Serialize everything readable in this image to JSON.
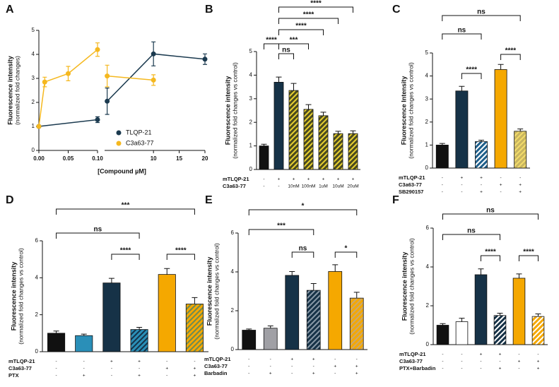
{
  "chart_data": [
    {
      "type": "line",
      "title": "A",
      "ylabel": "Fluorescence intensity",
      "ylabel_sub": "(normalized fold changes)",
      "xlabel": "[Compound µM]",
      "ylim": [
        0,
        5
      ],
      "yticks": [
        0,
        1,
        2,
        3,
        4,
        5
      ],
      "x_segments": [
        {
          "xlim": [
            0,
            0.1
          ],
          "xticks": [
            {
              "value": 0,
              "label": "0.00"
            },
            {
              "value": 0.05,
              "label": "0.05"
            },
            {
              "value": 0.1,
              "label": "0.10"
            }
          ]
        },
        {
          "xlim": [
            0.5,
            20
          ],
          "xticks": [
            10,
            15,
            20
          ]
        }
      ],
      "series": [
        {
          "name": "TLQP-21",
          "color": "#1b3a4f",
          "x": [
            0,
            0.1,
            1,
            10,
            20
          ],
          "values": [
            1,
            1.28,
            2.05,
            4.02,
            3.8
          ],
          "errors": [
            0.05,
            0.12,
            0.55,
            0.5,
            0.22
          ]
        },
        {
          "name": "C3a63-77",
          "color": "#f5b81f",
          "x": [
            0,
            0.01,
            0.05,
            0.1,
            1,
            10
          ],
          "values": [
            1,
            2.85,
            3.2,
            4.2,
            3.1,
            2.93
          ],
          "errors": [
            0.05,
            0.2,
            0.3,
            0.28,
            0.45,
            0.22
          ]
        }
      ]
    },
    {
      "type": "bar",
      "title": "B",
      "ylabel": "Fluorescence intensity",
      "ylabel_sub": "(normalized fold changes vs control)",
      "ylim": [
        0,
        5
      ],
      "yticks": [
        0,
        1,
        2,
        3,
        4,
        5
      ],
      "values": [
        1,
        3.7,
        3.35,
        2.55,
        2.28,
        1.52,
        1.52
      ],
      "errors": [
        0.07,
        0.22,
        0.3,
        0.2,
        0.15,
        0.1,
        0.12
      ],
      "colors": [
        "#111111",
        "#163247",
        "#4a4a1f",
        "#4a4a1f",
        "#4a4a1f",
        "#4a4a1f",
        "#4a4a1f"
      ],
      "hatch_colors": [
        null,
        null,
        "#e8d030",
        "#e8d030",
        "#e8d030",
        "#e8d030",
        "#e8d030"
      ],
      "conditions": [
        {
          "label": "mTLQP-21",
          "marks": [
            "-",
            "+",
            "+",
            "+",
            "+",
            "+",
            "+"
          ]
        },
        {
          "label": "C3a63-77",
          "marks": [
            "-",
            "-",
            "10nM",
            "100nM",
            "1uM",
            "10uM",
            "20uM"
          ]
        }
      ],
      "brackets": [
        {
          "from": 0,
          "to": 1,
          "label": "****"
        },
        {
          "from": 1,
          "to": 2,
          "label": "ns"
        },
        {
          "from": 1,
          "to": 3,
          "label": "***"
        },
        {
          "from": 1,
          "to": 4,
          "label": "****"
        },
        {
          "from": 1,
          "to": 5,
          "label": "****"
        },
        {
          "from": 1,
          "to": 6,
          "label": "****"
        }
      ]
    },
    {
      "type": "bar",
      "title": "C",
      "ylabel": "Fluorescence Intensity",
      "ylabel_sub": "(normalized fold changes vs control)",
      "ylim": [
        0,
        5
      ],
      "yticks": [
        0,
        1,
        2,
        3,
        4,
        5
      ],
      "values": [
        1,
        3.35,
        1.15,
        4.28,
        1.6
      ],
      "errors": [
        0.07,
        0.2,
        0.06,
        0.22,
        0.1
      ],
      "colors": [
        "#111111",
        "#163247",
        "#1f5f8b",
        "#f5a800",
        "#c8b560"
      ],
      "hatch_colors": [
        null,
        null,
        "#ffffff",
        null,
        "#f3dc6a"
      ],
      "conditions": [
        {
          "label": "mTLQP-21",
          "marks": [
            "-",
            "+",
            "+",
            "-",
            "-"
          ]
        },
        {
          "label": "C3a63-77",
          "marks": [
            "-",
            "-",
            "-",
            "+",
            "+"
          ]
        },
        {
          "label": "SB290157",
          "marks": [
            "-",
            "-",
            "+",
            "-",
            "+"
          ]
        }
      ],
      "brackets": [
        {
          "from": 1,
          "to": 2,
          "label": "****"
        },
        {
          "from": 3,
          "to": 4,
          "label": "****"
        },
        {
          "from": 0,
          "to": 2,
          "label": "ns"
        },
        {
          "from": 0,
          "to": 4,
          "label": "ns"
        }
      ]
    },
    {
      "type": "bar",
      "title": "D",
      "ylabel": "Fluorescence intensity",
      "ylabel_sub": "(normalized fold changes vs control)",
      "ylim": [
        0,
        6
      ],
      "yticks": [
        0,
        2,
        4,
        6
      ],
      "values": [
        1,
        0.87,
        3.72,
        1.2,
        4.18,
        2.58
      ],
      "errors": [
        0.12,
        0.08,
        0.25,
        0.12,
        0.32,
        0.35
      ],
      "colors": [
        "#111111",
        "#2a8fb8",
        "#163247",
        "#2a8fb8",
        "#f5a800",
        "#f5a800"
      ],
      "hatch_colors": [
        null,
        null,
        null,
        "#163247",
        null,
        "#6b8a55"
      ],
      "conditions": [
        {
          "label": "mTLQP-21",
          "marks": [
            "-",
            "-",
            "+",
            "+",
            "-",
            "-"
          ]
        },
        {
          "label": "C3a63-77",
          "marks": [
            "-",
            "-",
            "-",
            "-",
            "+",
            "+"
          ]
        },
        {
          "label": "PTX",
          "marks": [
            "-",
            "+",
            "-",
            "+",
            "-",
            "+"
          ]
        }
      ],
      "brackets": [
        {
          "from": 2,
          "to": 3,
          "label": "****"
        },
        {
          "from": 4,
          "to": 5,
          "label": "****"
        },
        {
          "from": 0,
          "to": 3,
          "label": "ns"
        },
        {
          "from": 0,
          "to": 5,
          "label": "***"
        }
      ]
    },
    {
      "type": "bar",
      "title": "E",
      "ylabel": "Fluorescence intensity",
      "ylabel_sub": "(normalized fold changes vs control)",
      "ylim": [
        0,
        6
      ],
      "yticks": [
        0,
        2,
        4,
        6
      ],
      "values": [
        1,
        1.1,
        3.82,
        3.05,
        4.02,
        2.65
      ],
      "errors": [
        0.06,
        0.12,
        0.2,
        0.35,
        0.35,
        0.3
      ],
      "colors": [
        "#111111",
        "#a0a0a5",
        "#163247",
        "#163247",
        "#f5a800",
        "#f5a800"
      ],
      "hatch_colors": [
        null,
        null,
        null,
        "#8a9aa8",
        null,
        "#c8a870"
      ],
      "conditions": [
        {
          "label": "mTLQP-21",
          "marks": [
            "-",
            "-",
            "+",
            "+",
            "-",
            "-"
          ]
        },
        {
          "label": "C3a63-77",
          "marks": [
            "-",
            "-",
            "-",
            "-",
            "+",
            "+"
          ]
        },
        {
          "label": "Barbadin",
          "marks": [
            "-",
            "+",
            "-",
            "+",
            "-",
            "+"
          ]
        }
      ],
      "brackets": [
        {
          "from": 2,
          "to": 3,
          "label": "ns"
        },
        {
          "from": 4,
          "to": 5,
          "label": "*"
        },
        {
          "from": 0,
          "to": 3,
          "label": "***"
        },
        {
          "from": 0,
          "to": 5,
          "label": "*"
        }
      ]
    },
    {
      "type": "bar",
      "title": "F",
      "ylabel": "Fluorescence intensity",
      "ylabel_sub": "(normalized fold changes vs control)",
      "ylim": [
        0,
        6
      ],
      "yticks": [
        0,
        2,
        4,
        6
      ],
      "values": [
        1,
        1.18,
        3.6,
        1.5,
        3.42,
        1.45
      ],
      "errors": [
        0.08,
        0.18,
        0.3,
        0.12,
        0.22,
        0.13
      ],
      "colors": [
        "#111111",
        "#ffffff",
        "#163247",
        "#163247",
        "#f5a800",
        "#f5a800"
      ],
      "hatch_colors": [
        null,
        null,
        null,
        "#ffffff",
        null,
        "#ffffff"
      ],
      "conditions": [
        {
          "label": "mTLQP-21",
          "marks": [
            "-",
            "-",
            "+",
            "+",
            "-",
            "-"
          ]
        },
        {
          "label": "C3a63-77",
          "marks": [
            "-",
            "-",
            "-",
            "-",
            "+",
            "+"
          ]
        },
        {
          "label": "PTX+Barbadin",
          "marks": [
            "-",
            "-",
            "-",
            "+",
            "-",
            "+"
          ]
        }
      ],
      "brackets": [
        {
          "from": 2,
          "to": 3,
          "label": "****"
        },
        {
          "from": 4,
          "to": 5,
          "label": "****"
        },
        {
          "from": 0,
          "to": 3,
          "label": "ns"
        },
        {
          "from": 0,
          "to": 5,
          "label": "ns"
        }
      ]
    }
  ]
}
